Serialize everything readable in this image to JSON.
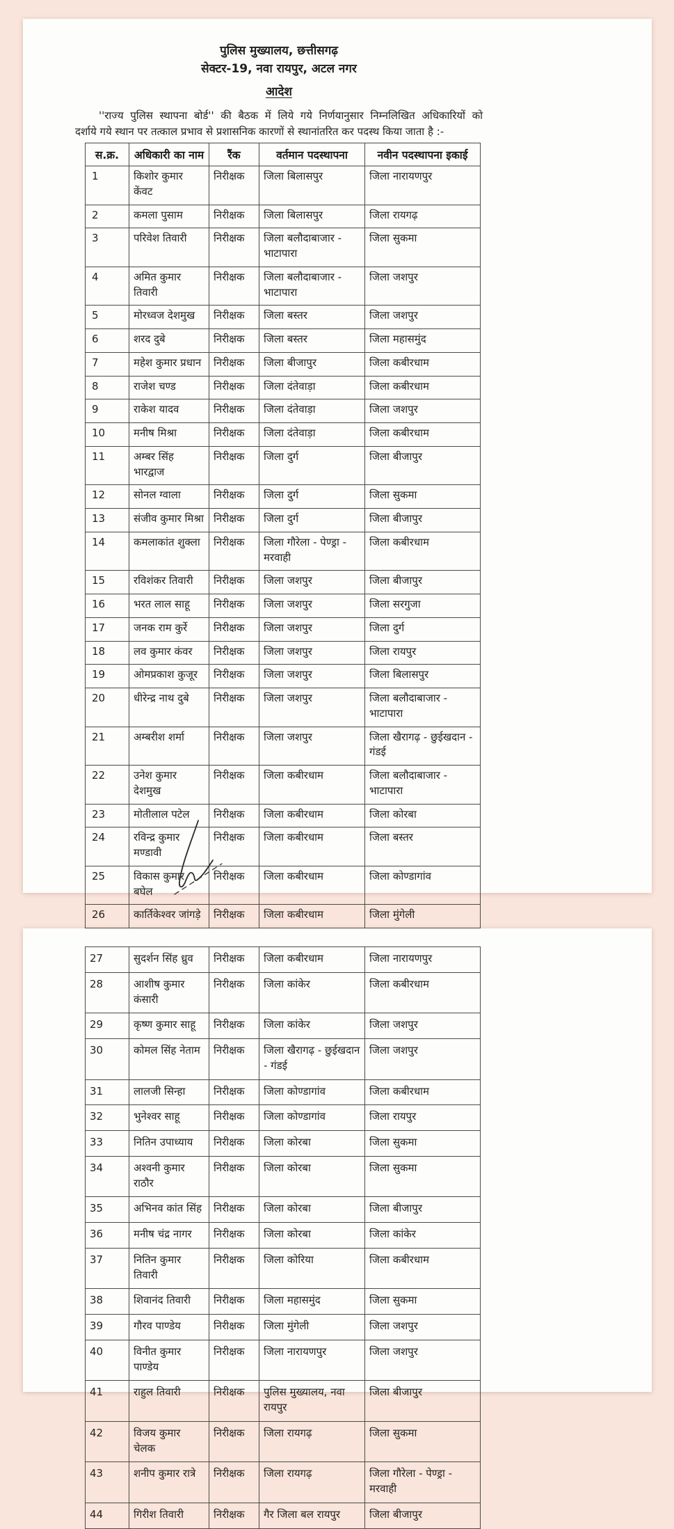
{
  "doc": {
    "header_line1": "पुलिस मुख्यालय, छत्तीसगढ़",
    "header_line2": "सेक्टर-19, नवा रायपुर, अटल नगर",
    "order_title": "आदेश",
    "intro_line1": "''राज्य पुलिस स्थापना बोर्ड'' की बैठक में लिये गये निर्णयानुसार निम्नलिखित अधिकारियों को",
    "intro_line2": "दर्शाये गये स्थान पर तत्काल प्रभाव से प्रशासनिक कारणों से स्थानांतरित कर पदस्थ किया जाता है :-"
  },
  "table": {
    "headers": [
      "स.क्र.",
      "अधिकारी का नाम",
      "रैंक",
      "वर्तमान पदस्थापना",
      "नवीन पदस्थापना इकाई"
    ],
    "page1_rows": [
      {
        "sno": "1",
        "name": "किशोर कुमार केंवट",
        "rank": "निरीक्षक",
        "current": "जिला बिलासपुर",
        "new": "जिला नारायणपुर"
      },
      {
        "sno": "2",
        "name": "कमला पुसाम",
        "rank": "निरीक्षक",
        "current": "जिला बिलासपुर",
        "new": "जिला रायगढ़"
      },
      {
        "sno": "3",
        "name": "परिवेश तिवारी",
        "rank": "निरीक्षक",
        "current": "जिला बलौदाबाजार - भाटापारा",
        "new": "जिला सुकमा"
      },
      {
        "sno": "4",
        "name": "अमित कुमार तिवारी",
        "rank": "निरीक्षक",
        "current": "जिला बलौदाबाजार - भाटापारा",
        "new": "जिला जशपुर"
      },
      {
        "sno": "5",
        "name": "मोरध्वज देशमुख",
        "rank": "निरीक्षक",
        "current": "जिला बस्तर",
        "new": "जिला जशपुर"
      },
      {
        "sno": "6",
        "name": "शरद दुबे",
        "rank": "निरीक्षक",
        "current": "जिला बस्तर",
        "new": "जिला महासमुंद"
      },
      {
        "sno": "7",
        "name": "महेश कुमार प्रधान",
        "rank": "निरीक्षक",
        "current": "जिला बीजापुर",
        "new": "जिला कबीरधाम"
      },
      {
        "sno": "8",
        "name": "राजेश चण्ड",
        "rank": "निरीक्षक",
        "current": "जिला दंतेवाड़ा",
        "new": "जिला कबीरधाम"
      },
      {
        "sno": "9",
        "name": "राकेश यादव",
        "rank": "निरीक्षक",
        "current": "जिला दंतेवाड़ा",
        "new": "जिला जशपुर"
      },
      {
        "sno": "10",
        "name": "मनीष मिश्रा",
        "rank": "निरीक्षक",
        "current": "जिला दंतेवाड़ा",
        "new": "जिला कबीरधाम"
      },
      {
        "sno": "11",
        "name": "अम्बर सिंह भारद्वाज",
        "rank": "निरीक्षक",
        "current": "जिला दुर्ग",
        "new": "जिला बीजापुर"
      },
      {
        "sno": "12",
        "name": "सोनल ग्वाला",
        "rank": "निरीक्षक",
        "current": "जिला दुर्ग",
        "new": "जिला सुकमा"
      },
      {
        "sno": "13",
        "name": "संजीव कुमार मिश्रा",
        "rank": "निरीक्षक",
        "current": "जिला दुर्ग",
        "new": "जिला बीजापुर"
      },
      {
        "sno": "14",
        "name": "कमलाकांत शुक्ला",
        "rank": "निरीक्षक",
        "current": "जिला गौरेला - पेण्ड्रा - मरवाही",
        "new": "जिला कबीरधाम"
      },
      {
        "sno": "15",
        "name": "रविशंकर तिवारी",
        "rank": "निरीक्षक",
        "current": "जिला जशपुर",
        "new": "जिला बीजापुर"
      },
      {
        "sno": "16",
        "name": "भरत लाल साहू",
        "rank": "निरीक्षक",
        "current": "जिला जशपुर",
        "new": "जिला सरगुजा"
      },
      {
        "sno": "17",
        "name": "जनक राम कुर्रे",
        "rank": "निरीक्षक",
        "current": "जिला जशपुर",
        "new": "जिला दुर्ग"
      },
      {
        "sno": "18",
        "name": "लव कुमार कंवर",
        "rank": "निरीक्षक",
        "current": "जिला जशपुर",
        "new": "जिला रायपुर"
      },
      {
        "sno": "19",
        "name": "ओमप्रकाश कुजूर",
        "rank": "निरीक्षक",
        "current": "जिला जशपुर",
        "new": "जिला बिलासपुर"
      },
      {
        "sno": "20",
        "name": "धीरेन्द्र नाथ दुबे",
        "rank": "निरीक्षक",
        "current": "जिला जशपुर",
        "new": "जिला बलौदाबाजार - भाटापारा"
      },
      {
        "sno": "21",
        "name": "अम्बरीश शर्मा",
        "rank": "निरीक्षक",
        "current": "जिला जशपुर",
        "new": "जिला खैरागढ़ - छुईखदान - गंडई"
      },
      {
        "sno": "22",
        "name": "उनेश कुमार देशमुख",
        "rank": "निरीक्षक",
        "current": "जिला कबीरधाम",
        "new": "जिला बलौदाबाजार - भाटापारा"
      },
      {
        "sno": "23",
        "name": "मोतीलाल पटेल",
        "rank": "निरीक्षक",
        "current": "जिला कबीरधाम",
        "new": "जिला कोरबा"
      },
      {
        "sno": "24",
        "name": "रविन्द्र कुमार मण्डावी",
        "rank": "निरीक्षक",
        "current": "जिला कबीरधाम",
        "new": "जिला बस्तर"
      },
      {
        "sno": "25",
        "name": "विकास कुमार बघेल",
        "rank": "निरीक्षक",
        "current": "जिला कबीरधाम",
        "new": "जिला कोण्डागांव"
      },
      {
        "sno": "26",
        "name": "कार्तिकेश्वर जांगड़े",
        "rank": "निरीक्षक",
        "current": "जिला कबीरधाम",
        "new": "जिला मुंगेली"
      }
    ],
    "page2_rows": [
      {
        "sno": "27",
        "name": "सुदर्शन सिंह ध्रुव",
        "rank": "निरीक्षक",
        "current": "जिला कबीरधाम",
        "new": "जिला नारायणपुर"
      },
      {
        "sno": "28",
        "name": "आशीष कुमार कंसारी",
        "rank": "निरीक्षक",
        "current": "जिला कांकेर",
        "new": "जिला कबीरधाम"
      },
      {
        "sno": "29",
        "name": "कृष्ण कुमार साहू",
        "rank": "निरीक्षक",
        "current": "जिला कांकेर",
        "new": "जिला जशपुर"
      },
      {
        "sno": "30",
        "name": "कोमल सिंह नेताम",
        "rank": "निरीक्षक",
        "current": "जिला खैरागढ़ - छुईखदान - गंडई",
        "new": "जिला जशपुर"
      },
      {
        "sno": "31",
        "name": "लालजी सिन्हा",
        "rank": "निरीक्षक",
        "current": "जिला कोण्डागांव",
        "new": "जिला कबीरधाम"
      },
      {
        "sno": "32",
        "name": "भुनेश्वर साहू",
        "rank": "निरीक्षक",
        "current": "जिला कोण्डागांव",
        "new": "जिला रायपुर"
      },
      {
        "sno": "33",
        "name": "नितिन उपाध्याय",
        "rank": "निरीक्षक",
        "current": "जिला कोरबा",
        "new": "जिला सुकमा"
      },
      {
        "sno": "34",
        "name": "अश्वनी कुमार राठौर",
        "rank": "निरीक्षक",
        "current": "जिला कोरबा",
        "new": "जिला सुकमा"
      },
      {
        "sno": "35",
        "name": "अभिनव कांत सिंह",
        "rank": "निरीक्षक",
        "current": "जिला कोरबा",
        "new": "जिला बीजापुर"
      },
      {
        "sno": "36",
        "name": "मनीष चंद्र नागर",
        "rank": "निरीक्षक",
        "current": "जिला कोरबा",
        "new": "जिला कांकेर"
      },
      {
        "sno": "37",
        "name": "नितिन कुमार तिवारी",
        "rank": "निरीक्षक",
        "current": "जिला कोरिया",
        "new": "जिला कबीरधाम"
      },
      {
        "sno": "38",
        "name": "शिवानंद तिवारी",
        "rank": "निरीक्षक",
        "current": "जिला महासमुंद",
        "new": "जिला सुकमा"
      },
      {
        "sno": "39",
        "name": "गौरव पाण्डेय",
        "rank": "निरीक्षक",
        "current": "जिला मुंगेली",
        "new": "जिला जशपुर"
      },
      {
        "sno": "40",
        "name": "विनीत कुमार पाण्डेय",
        "rank": "निरीक्षक",
        "current": "जिला नारायणपुर",
        "new": "जिला जशपुर"
      },
      {
        "sno": "41",
        "name": "राहुल तिवारी",
        "rank": "निरीक्षक",
        "current": "पुलिस मुख्यालय, नवा रायपुर",
        "new": "जिला बीजापुर"
      },
      {
        "sno": "42",
        "name": "विजय कुमार चेलक",
        "rank": "निरीक्षक",
        "current": "जिला रायगढ़",
        "new": "जिला सुकमा"
      },
      {
        "sno": "43",
        "name": "शनीप कुमार रात्रे",
        "rank": "निरीक्षक",
        "current": "जिला रायगढ़",
        "new": "जिला गौरेला - पेण्ड्रा - मरवाही"
      },
      {
        "sno": "44",
        "name": "गिरीश तिवारी",
        "rank": "निरीक्षक",
        "current": "गैर जिला बल रायपुर",
        "new": "जिला बीजापुर"
      }
    ]
  }
}
